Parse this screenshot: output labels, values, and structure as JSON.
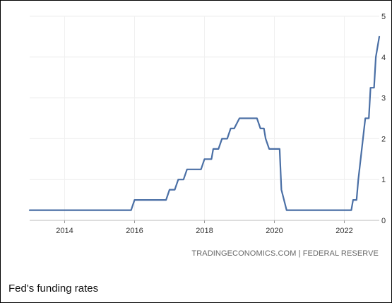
{
  "chart_data": {
    "type": "line",
    "title": "",
    "xlabel": "",
    "ylabel": "",
    "xlim": [
      2013,
      2023
    ],
    "ylim": [
      0,
      5
    ],
    "grid": true,
    "x_ticks": [
      2014,
      2016,
      2018,
      2020,
      2022
    ],
    "y_ticks": [
      0,
      1,
      2,
      3,
      4,
      5
    ],
    "color": "#4a6fa5",
    "series": [
      {
        "name": "",
        "points": [
          [
            2013.0,
            0.25
          ],
          [
            2015.9,
            0.25
          ],
          [
            2016.0,
            0.5
          ],
          [
            2016.9,
            0.5
          ],
          [
            2017.0,
            0.75
          ],
          [
            2017.15,
            0.75
          ],
          [
            2017.25,
            1.0
          ],
          [
            2017.4,
            1.0
          ],
          [
            2017.5,
            1.25
          ],
          [
            2017.9,
            1.25
          ],
          [
            2018.0,
            1.5
          ],
          [
            2018.2,
            1.5
          ],
          [
            2018.25,
            1.75
          ],
          [
            2018.4,
            1.75
          ],
          [
            2018.5,
            2.0
          ],
          [
            2018.65,
            2.0
          ],
          [
            2018.75,
            2.25
          ],
          [
            2018.85,
            2.25
          ],
          [
            2019.0,
            2.5
          ],
          [
            2019.5,
            2.5
          ],
          [
            2019.6,
            2.25
          ],
          [
            2019.7,
            2.25
          ],
          [
            2019.75,
            2.0
          ],
          [
            2019.85,
            1.75
          ],
          [
            2020.15,
            1.75
          ],
          [
            2020.2,
            0.75
          ],
          [
            2020.35,
            0.25
          ],
          [
            2022.2,
            0.25
          ],
          [
            2022.25,
            0.5
          ],
          [
            2022.35,
            0.5
          ],
          [
            2022.4,
            1.0
          ],
          [
            2022.6,
            2.5
          ],
          [
            2022.7,
            2.5
          ],
          [
            2022.75,
            3.25
          ],
          [
            2022.85,
            3.25
          ],
          [
            2022.9,
            4.0
          ],
          [
            2023.0,
            4.5
          ]
        ]
      }
    ]
  },
  "source": "TRADINGECONOMICS.COM | FEDERAL RESERVE",
  "caption": "Fed's funding rates"
}
